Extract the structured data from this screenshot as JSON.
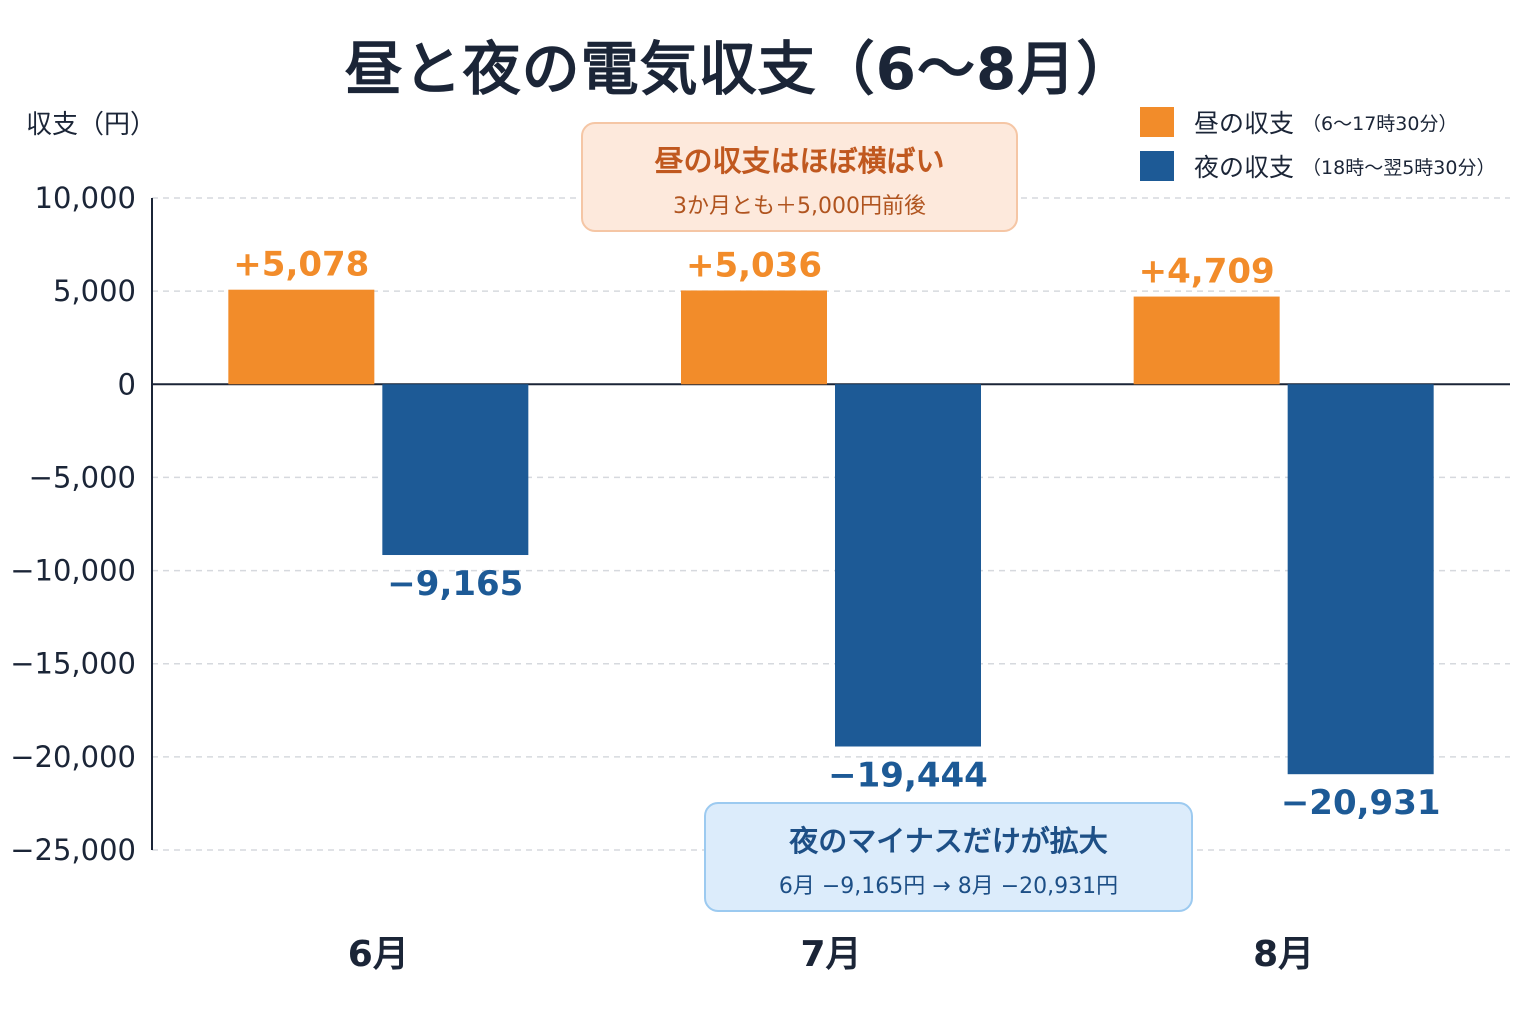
{
  "chart_data": {
    "type": "bar",
    "title": "昼と夜の電気収支（6〜8月）",
    "ylabel": "収支（円）",
    "xlabel": "",
    "categories": [
      "6月",
      "7月",
      "8月"
    ],
    "series": [
      {
        "name": "昼の収支",
        "note": "（6〜17時30分）",
        "color": "#f28c2a",
        "values": [
          5078,
          5036,
          4709
        ],
        "labels": [
          "+5,078",
          "+5,036",
          "+4,709"
        ]
      },
      {
        "name": "夜の収支",
        "note": "（18時〜翌5時30分）",
        "color": "#1d5a96",
        "values": [
          -9165,
          -19444,
          -20931
        ],
        "labels": [
          "−9,165",
          "−19,444",
          "−20,931"
        ]
      }
    ],
    "ylim": [
      -25000,
      10000
    ],
    "yticks": [
      10000,
      5000,
      0,
      -5000,
      -10000,
      -15000,
      -20000,
      -25000
    ],
    "ytick_labels": [
      "10,000",
      "5,000",
      "0",
      "−5,000",
      "−10,000",
      "−15,000",
      "−20,000",
      "−25,000"
    ],
    "grid": true,
    "legend_position": "top-right",
    "annotations": [
      {
        "id": "day",
        "title": "昼の収支はほぼ横ばい",
        "text": "3か月とも＋5,000円前後"
      },
      {
        "id": "night",
        "title": "夜のマイナスだけが拡大",
        "text": "6月 −9,165円 → 8月 −20,931円"
      }
    ]
  }
}
